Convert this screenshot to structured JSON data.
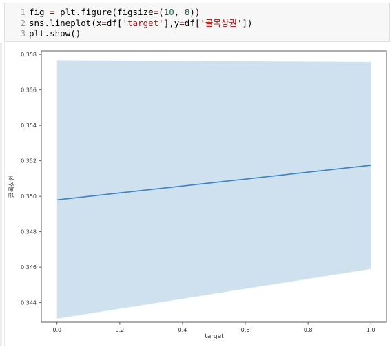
{
  "code_cell": {
    "lines": [
      {
        "num": "1",
        "parts": [
          {
            "t": "fig ",
            "c": ""
          },
          {
            "t": "=",
            "c": "op"
          },
          {
            "t": " plt.figure(figsize",
            "c": ""
          },
          {
            "t": "=",
            "c": "op"
          },
          {
            "t": "(",
            "c": ""
          },
          {
            "t": "10",
            "c": "num"
          },
          {
            "t": ", ",
            "c": ""
          },
          {
            "t": "8",
            "c": "num"
          },
          {
            "t": "))",
            "c": ""
          }
        ]
      },
      {
        "num": "2",
        "parts": [
          {
            "t": "sns.lineplot(x",
            "c": ""
          },
          {
            "t": "=",
            "c": "op"
          },
          {
            "t": "df[",
            "c": ""
          },
          {
            "t": "'target'",
            "c": "str"
          },
          {
            "t": "],y",
            "c": ""
          },
          {
            "t": "=",
            "c": "op"
          },
          {
            "t": "df[",
            "c": ""
          },
          {
            "t": "'골목상권'",
            "c": "str"
          },
          {
            "t": "])",
            "c": ""
          }
        ]
      },
      {
        "num": "3",
        "parts": [
          {
            "t": "plt.show()",
            "c": ""
          }
        ]
      }
    ]
  },
  "chart_data": {
    "type": "line",
    "title": "",
    "xlabel": "target",
    "ylabel": "골목상권",
    "xlim": [
      -0.05,
      1.05
    ],
    "ylim": [
      0.3429,
      0.3582
    ],
    "x_ticks": [
      0.0,
      0.2,
      0.4,
      0.6,
      0.8,
      1.0
    ],
    "x_tick_labels": [
      "0.0",
      "0.2",
      "0.4",
      "0.6",
      "0.8",
      "1.0"
    ],
    "y_ticks": [
      0.344,
      0.346,
      0.348,
      0.35,
      0.352,
      0.354,
      0.356,
      0.358
    ],
    "y_tick_labels": [
      "0.344",
      "0.346",
      "0.348",
      "0.350",
      "0.352",
      "0.354",
      "0.356",
      "0.358"
    ],
    "grid": false,
    "series": [
      {
        "x": [
          0.0,
          1.0
        ],
        "y": [
          0.3498,
          0.35175
        ],
        "ci_lower": [
          0.3431,
          0.3459
        ],
        "ci_upper": [
          0.35768,
          0.35758
        ],
        "color": "#3b82c4",
        "ci_color": "#cfe1ee"
      }
    ]
  }
}
